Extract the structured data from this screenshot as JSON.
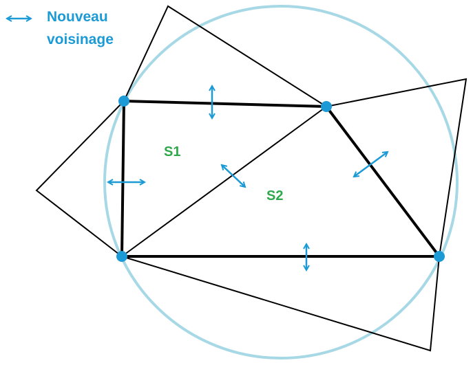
{
  "legend": {
    "icon": "double-arrow-icon",
    "line1": "Nouveau",
    "line2": "voisinage"
  },
  "regions": {
    "s1": "S1",
    "s2": "S2"
  },
  "colors": {
    "accent": "#1b9ad6",
    "label": "#2ea84a",
    "circle": "#a7d8e6",
    "line": "#000000"
  }
}
